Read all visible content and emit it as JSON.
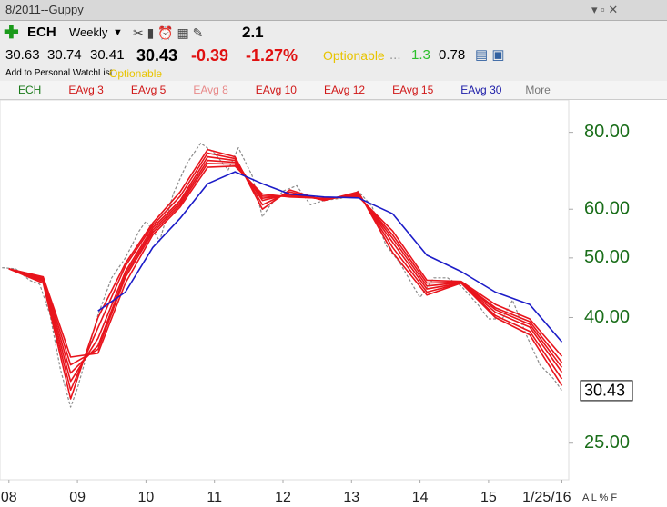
{
  "header": {
    "title": "8/2011--Guppy"
  },
  "toolbar": {
    "symbol": "ECH",
    "period": "Weekly",
    "value": 2.1
  },
  "quote": {
    "open": 30.63,
    "high": 30.74,
    "low": 30.41,
    "last": 30.43,
    "change": -0.39,
    "change_pct": "-1.27%",
    "optionable": "Optionable",
    "dots": "...",
    "stat1": 1.3,
    "stat2": 0.78
  },
  "subbar": {
    "watchlist": "Add to Personal WatchList",
    "optionable": "Optionable"
  },
  "chart_data": {
    "type": "line",
    "log_scale": true,
    "legend_more": "More",
    "xlim": [
      2007.87,
      2016.17
    ],
    "xticks": [
      {
        "value": 2008,
        "label": "08"
      },
      {
        "value": 2009,
        "label": "09"
      },
      {
        "value": 2010,
        "label": "10"
      },
      {
        "value": 2011,
        "label": "11"
      },
      {
        "value": 2012,
        "label": "12"
      },
      {
        "value": 2013,
        "label": "13"
      },
      {
        "value": 2014,
        "label": "14"
      },
      {
        "value": 2015,
        "label": "15"
      },
      {
        "value": 2016.07,
        "label": "1/25/16"
      }
    ],
    "ylim": [
      21.8,
      90.3
    ],
    "yticks": [
      {
        "value": 25,
        "label": "25.00"
      },
      {
        "value": 40,
        "label": "40.00"
      },
      {
        "value": 50,
        "label": "50.00"
      },
      {
        "value": 60,
        "label": "60.00"
      },
      {
        "value": 80,
        "label": "80.00"
      }
    ],
    "last_price": {
      "value": 30.43,
      "label": "30.43"
    },
    "series": [
      {
        "name": "ECH",
        "color": "#8a8a8a",
        "legend_color": "#1a7a1a",
        "dashed": true,
        "x": [
          2007.9,
          2008.1,
          2008.3,
          2008.45,
          2008.6,
          2008.75,
          2008.9,
          2009.0,
          2009.15,
          2009.3,
          2009.5,
          2009.7,
          2009.9,
          2010.0,
          2010.2,
          2010.4,
          2010.6,
          2010.8,
          2011.0,
          2011.2,
          2011.35,
          2011.55,
          2011.7,
          2011.8,
          2012.0,
          2012.2,
          2012.4,
          2012.6,
          2012.85,
          2013.1,
          2013.3,
          2013.5,
          2013.7,
          2013.9,
          2014.0,
          2014.2,
          2014.4,
          2014.6,
          2014.85,
          2015.0,
          2015.2,
          2015.35,
          2015.55,
          2015.75,
          2015.95,
          2016.07
        ],
        "values": [
          48.2,
          48,
          46,
          45.3,
          40.4,
          33,
          28.6,
          30.7,
          35.2,
          40.4,
          46.4,
          50,
          55.3,
          57.4,
          53.3,
          63.6,
          71.3,
          76.8,
          74,
          69.5,
          75.5,
          68,
          58.3,
          60.6,
          64.2,
          65.5,
          61,
          62,
          62.5,
          64.2,
          60.6,
          52.5,
          49.2,
          45,
          43.1,
          46.4,
          46.4,
          45,
          41.9,
          39.8,
          39.8,
          42.7,
          37.5,
          33.5,
          31.8,
          30.43
        ]
      },
      {
        "name": "EAvg 3",
        "color": "#e8141c",
        "legend_color": "#d01818",
        "x": [
          2008.0,
          2008.5,
          2008.9,
          2009.3,
          2009.7,
          2010.1,
          2010.5,
          2010.9,
          2011.3,
          2011.7,
          2012.1,
          2012.6,
          2013.1,
          2013.6,
          2014.1,
          2014.6,
          2015.1,
          2015.6,
          2016.07
        ],
        "values": [
          48,
          45.5,
          29.5,
          40,
          49,
          57,
          64,
          75,
          73,
          60,
          64.5,
          62,
          64,
          51,
          43.5,
          45.5,
          40,
          37.5,
          31
        ]
      },
      {
        "name": "EAvg 5",
        "color": "#e8141c",
        "legend_color": "#d01818",
        "x": [
          2008.0,
          2008.5,
          2008.9,
          2009.3,
          2009.7,
          2010.1,
          2010.5,
          2010.9,
          2011.3,
          2011.7,
          2012.1,
          2012.6,
          2013.1,
          2013.6,
          2014.1,
          2014.6,
          2015.1,
          2015.6,
          2016.07
        ],
        "values": [
          48,
          45.8,
          30.5,
          38.5,
          48.5,
          56.5,
          63,
          74,
          72.5,
          61,
          64,
          62,
          63.8,
          52,
          44,
          45.5,
          40.3,
          38,
          31.8
        ]
      },
      {
        "name": "EAvg 8",
        "color": "#e8141c",
        "legend_color": "#e88a8a",
        "x": [
          2008.0,
          2008.5,
          2008.9,
          2009.3,
          2009.7,
          2010.1,
          2010.5,
          2010.9,
          2011.3,
          2011.7,
          2012.1,
          2012.6,
          2013.1,
          2013.6,
          2014.1,
          2014.6,
          2015.1,
          2015.6,
          2016.07
        ],
        "values": [
          48,
          46,
          31.5,
          37,
          47.5,
          56,
          62,
          73,
          72,
          62,
          63.5,
          62.2,
          63.5,
          53,
          44.5,
          45.5,
          40.8,
          38.6,
          32.6
        ]
      },
      {
        "name": "EAvg 10",
        "color": "#e8141c",
        "legend_color": "#d01818",
        "x": [
          2008.0,
          2008.5,
          2008.9,
          2009.3,
          2009.7,
          2010.1,
          2010.5,
          2010.9,
          2011.3,
          2011.7,
          2012.1,
          2012.6,
          2013.1,
          2013.6,
          2014.1,
          2014.6,
          2015.1,
          2015.6,
          2016.07
        ],
        "values": [
          48,
          46.2,
          32.5,
          36,
          47,
          55.5,
          61.5,
          72,
          71.5,
          62.5,
          63.3,
          62.3,
          63.3,
          53.8,
          45,
          45.6,
          41.2,
          39,
          33.2
        ]
      },
      {
        "name": "EAvg 12",
        "color": "#e8141c",
        "legend_color": "#d01818",
        "x": [
          2008.0,
          2008.5,
          2008.9,
          2009.3,
          2009.7,
          2010.1,
          2010.5,
          2010.9,
          2011.3,
          2011.7,
          2012.1,
          2012.6,
          2013.1,
          2013.6,
          2014.1,
          2014.6,
          2015.1,
          2015.6,
          2016.07
        ],
        "values": [
          48,
          46.4,
          33.5,
          35.5,
          46.5,
          55,
          61,
          71.2,
          71,
          63,
          63,
          62.4,
          63.1,
          54.5,
          45.5,
          45.7,
          41.5,
          39.4,
          33.8
        ]
      },
      {
        "name": "EAvg 15",
        "color": "#e8141c",
        "legend_color": "#d01818",
        "x": [
          2008.0,
          2008.5,
          2008.9,
          2009.3,
          2009.7,
          2010.1,
          2010.5,
          2010.9,
          2011.3,
          2011.7,
          2012.1,
          2012.6,
          2013.1,
          2013.6,
          2014.1,
          2014.6,
          2015.1,
          2015.6,
          2016.07
        ],
        "values": [
          48,
          46.6,
          34.5,
          35,
          45.5,
          54.5,
          60.5,
          70.2,
          70.5,
          63.5,
          62.8,
          62.5,
          62.9,
          55.3,
          46,
          45.8,
          42,
          39.8,
          34.6
        ]
      },
      {
        "name": "EAvg 30",
        "color": "#1c1cc8",
        "legend_color": "#1c1ca8",
        "x": [
          2008.0,
          2008.5,
          2008.9,
          2009.3,
          2009.7,
          2010.1,
          2010.5,
          2010.9,
          2011.3,
          2011.7,
          2012.1,
          2012.6,
          2013.1,
          2013.6,
          2014.1,
          2014.6,
          2015.1,
          2015.6,
          2016.07
        ],
        "values": [
          null,
          null,
          null,
          41,
          44,
          52,
          58,
          66,
          69,
          66,
          63.5,
          62.8,
          62.6,
          59,
          50.5,
          47.5,
          44,
          42,
          36.5
        ]
      }
    ]
  },
  "footer": {
    "modes": "A L % F"
  }
}
